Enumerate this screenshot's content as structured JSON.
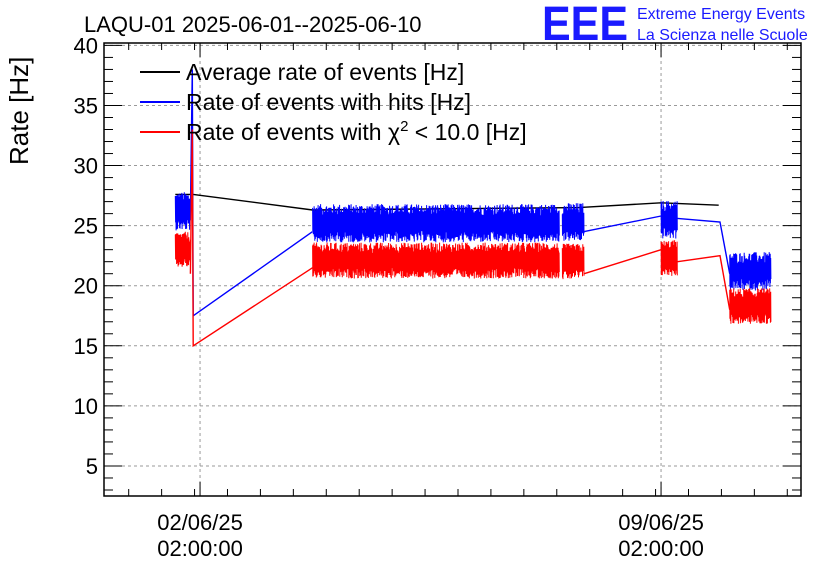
{
  "logo": {
    "mark": "EEE",
    "line1": "Extreme Energy Events",
    "line2": "La Scienza nelle Scuole"
  },
  "chart_data": {
    "type": "line",
    "title": "LAQU-01 2025-06-01--2025-06-10",
    "xlabel": "",
    "ylabel": "Rate [Hz]",
    "ylim": [
      2.5,
      40.2
    ],
    "yticks": [
      5,
      10,
      15,
      20,
      25,
      30,
      35,
      40
    ],
    "xlim": [
      "2025-05-31 15:00",
      "2025-06-11 05:00"
    ],
    "xticks": [
      {
        "x": "2025-06-02 02:00",
        "line1": "02/06/25",
        "line2": "02:00:00"
      },
      {
        "x": "2025-06-09 02:00",
        "line1": "09/06/25",
        "line2": "02:00:00"
      }
    ],
    "grid": true,
    "legend": {
      "placement": "top-left",
      "entries": [
        {
          "label": "Average rate of events [Hz]",
          "color": "#000000"
        },
        {
          "label": "Rate of events with hits [Hz]",
          "color": "#0000ff"
        },
        {
          "label_prefix": "Rate of events with ",
          "label_symbol": "χ",
          "label_sup": "2",
          "label_suffix": " < 10.0 [Hz]",
          "color": "#ff0000"
        }
      ]
    },
    "series": [
      {
        "name": "Average rate of events [Hz]",
        "color": "#000000",
        "noisy": false,
        "points": [
          [
            "2025-06-01 17:00",
            27.6
          ],
          [
            "2025-06-01 23:30",
            27.6
          ],
          [
            "2025-06-03 19:00",
            26.3
          ],
          [
            "2025-06-07 20:00",
            26.5
          ],
          [
            "2025-06-09 02:00",
            26.9
          ],
          [
            "2025-06-09 23:00",
            26.7
          ]
        ]
      },
      {
        "name": "Rate of events with hits [Hz]",
        "color": "#0000ff",
        "noisy": true,
        "amplitude": 1.6,
        "segments": [
          {
            "start": "2025-06-01 17:00",
            "end": "2025-06-01 22:30",
            "level": 26.2
          },
          {
            "start": "2025-06-03 19:00",
            "end": "2025-06-07 13:00",
            "level": 25.2
          },
          {
            "start": "2025-06-07 14:00",
            "end": "2025-06-07 22:00",
            "level": 25.3
          },
          {
            "start": "2025-06-09 02:00",
            "end": "2025-06-09 08:00",
            "level": 25.5
          },
          {
            "start": "2025-06-10 03:00",
            "end": "2025-06-10 18:00",
            "level": 21.2
          }
        ],
        "gaps": [
          [
            [
              "2025-06-01 22:30",
              26.0
            ],
            [
              "2025-06-01 23:10",
              38.0
            ],
            [
              "2025-06-01 23:30",
              17.5
            ],
            [
              "2025-06-03 19:00",
              24.5
            ]
          ],
          [
            [
              "2025-06-07 22:00",
              24.5
            ],
            [
              "2025-06-09 02:00",
              25.8
            ]
          ],
          [
            [
              "2025-06-09 08:00",
              25.6
            ],
            [
              "2025-06-09 23:30",
              25.3
            ],
            [
              "2025-06-10 03:00",
              21.0
            ]
          ]
        ]
      },
      {
        "name": "Rate of events with χ2 < 10.0 [Hz]",
        "color": "#ff0000",
        "noisy": true,
        "amplitude": 1.5,
        "segments": [
          {
            "start": "2025-06-01 17:00",
            "end": "2025-06-01 22:30",
            "level": 23.0
          },
          {
            "start": "2025-06-03 19:00",
            "end": "2025-06-07 13:00",
            "level": 22.1
          },
          {
            "start": "2025-06-07 14:00",
            "end": "2025-06-07 22:00",
            "level": 22.0
          },
          {
            "start": "2025-06-09 02:00",
            "end": "2025-06-09 08:00",
            "level": 22.3
          },
          {
            "start": "2025-06-10 03:00",
            "end": "2025-06-10 18:00",
            "level": 18.3
          }
        ],
        "gaps": [
          [
            [
              "2025-06-01 22:30",
              21.0
            ],
            [
              "2025-06-01 23:10",
              33.0
            ],
            [
              "2025-06-01 23:30",
              15.0
            ],
            [
              "2025-06-03 19:00",
              21.5
            ]
          ],
          [
            [
              "2025-06-07 22:00",
              21.0
            ],
            [
              "2025-06-09 02:00",
              23.0
            ]
          ],
          [
            [
              "2025-06-09 08:00",
              22.0
            ],
            [
              "2025-06-09 23:30",
              22.5
            ],
            [
              "2025-06-10 03:00",
              18.0
            ]
          ]
        ]
      }
    ]
  }
}
